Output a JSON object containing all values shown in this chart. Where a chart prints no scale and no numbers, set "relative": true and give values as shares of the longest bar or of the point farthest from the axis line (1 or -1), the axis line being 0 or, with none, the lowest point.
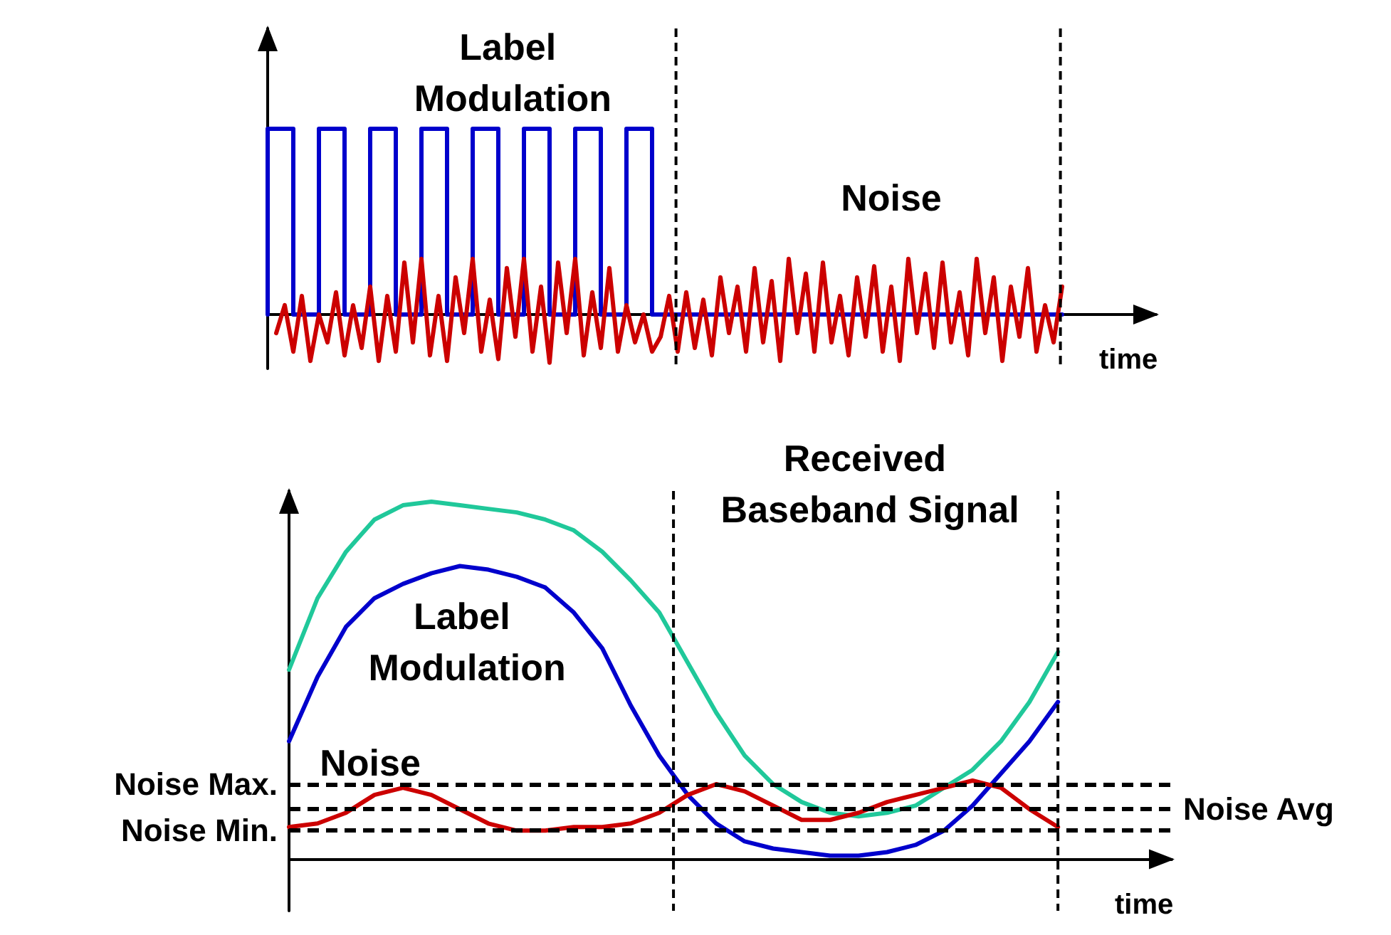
{
  "chart_data": [
    {
      "type": "line",
      "xlabel": "time",
      "relative": true,
      "legend": false,
      "grid": false,
      "marker": "none",
      "line_style": "solid",
      "categories": [
        null,
        null,
        null,
        null,
        null,
        null,
        null,
        null,
        null,
        null,
        null,
        null,
        null,
        null,
        null,
        null,
        null,
        null,
        null,
        null,
        null,
        null,
        null,
        null,
        null,
        null,
        null,
        null,
        null,
        null,
        null,
        null,
        null,
        null,
        null,
        null,
        null,
        null,
        null,
        null,
        null,
        null,
        null,
        null,
        null,
        null,
        null,
        null,
        null,
        null,
        null,
        null,
        null,
        null,
        null,
        null,
        null,
        null,
        null,
        null,
        null,
        null,
        null,
        null,
        null,
        null,
        null,
        null,
        null,
        null,
        null,
        null,
        null,
        null,
        null,
        null,
        null,
        null,
        null,
        null,
        null,
        null,
        null,
        null,
        null,
        null,
        null,
        null,
        null,
        null,
        null,
        null,
        null,
        null,
        null,
        null,
        null,
        null,
        null,
        null,
        null
      ],
      "series": [
        {
          "name": "Label Modulation",
          "type": "step",
          "color": "#0000cc",
          "values": [
            0,
            1,
            1,
            1,
            0,
            0,
            0,
            1,
            1,
            1,
            0,
            0,
            0,
            1,
            1,
            1,
            0,
            0,
            0,
            1,
            1,
            1,
            0,
            0,
            0,
            1,
            1,
            1,
            0,
            0,
            0,
            1,
            1,
            1,
            0,
            0,
            0,
            1,
            1,
            1,
            0,
            0,
            0,
            1,
            1,
            1,
            0,
            0,
            0,
            0,
            0,
            0,
            0,
            0,
            0,
            0,
            0,
            0,
            0,
            0,
            0,
            0,
            0,
            0,
            0,
            0,
            0,
            0,
            0,
            0,
            0,
            0,
            0,
            0,
            0,
            0,
            0,
            0,
            0,
            0,
            0,
            0,
            0,
            0,
            0,
            0,
            0,
            0,
            0,
            0,
            0,
            0,
            0,
            0,
            null,
            null,
            null,
            null,
            null,
            null,
            null
          ]
        },
        {
          "name": "Noise",
          "type": "line",
          "color": "#cc0000",
          "values": [
            null,
            -0.1,
            0.05,
            -0.2,
            0.1,
            -0.25,
            0.0,
            -0.15,
            0.12,
            -0.22,
            0.05,
            -0.18,
            0.15,
            -0.25,
            0.1,
            -0.2,
            0.28,
            -0.15,
            0.3,
            -0.22,
            0.1,
            -0.25,
            0.2,
            -0.1,
            0.3,
            -0.2,
            0.08,
            -0.24,
            0.25,
            -0.12,
            0.3,
            -0.2,
            0.15,
            -0.26,
            0.28,
            -0.1,
            0.3,
            -0.22,
            0.12,
            -0.18,
            0.25,
            -0.2,
            0.05,
            -0.15,
            0.0,
            -0.2,
            -0.12,
            0.1,
            -0.2,
            0.12,
            -0.18,
            0.08,
            -0.22,
            0.2,
            -0.1,
            0.15,
            -0.2,
            0.25,
            -0.15,
            0.18,
            -0.25,
            0.3,
            -0.1,
            0.22,
            -0.2,
            0.28,
            -0.15,
            0.1,
            -0.22,
            0.2,
            -0.12,
            0.26,
            -0.2,
            0.15,
            -0.25,
            0.3,
            -0.1,
            0.22,
            -0.18,
            0.28,
            -0.15,
            0.12,
            -0.22,
            0.3,
            -0.1,
            0.2,
            -0.25,
            0.15,
            -0.12,
            0.25,
            -0.2,
            0.05,
            -0.15,
            0.15,
            null,
            null,
            null,
            null,
            null,
            null,
            null
          ]
        }
      ]
    },
    {
      "type": "line",
      "xlabel": "time",
      "relative": true,
      "legend": false,
      "grid": false,
      "marker": "none",
      "line_style": "solid",
      "categories": [
        null,
        null,
        null,
        null,
        null,
        null,
        null,
        null,
        null,
        null,
        null,
        null,
        null,
        null,
        null,
        null,
        null,
        null,
        null,
        null,
        null,
        null,
        null,
        null,
        null,
        null,
        null,
        null
      ],
      "series": [
        {
          "name": "Received Baseband Signal",
          "color": "#20c89a",
          "values": [
            0.53,
            0.73,
            0.86,
            0.95,
            0.99,
            1.0,
            0.99,
            0.98,
            0.97,
            0.95,
            0.92,
            0.86,
            0.78,
            0.69,
            0.55,
            0.41,
            0.29,
            0.21,
            0.16,
            0.13,
            0.12,
            0.13,
            0.15,
            0.2,
            0.25,
            0.33,
            0.44,
            0.58
          ]
        },
        {
          "name": "Label Modulation",
          "color": "#0000cc",
          "values": [
            0.33,
            0.51,
            0.65,
            0.73,
            0.77,
            0.8,
            0.82,
            0.81,
            0.79,
            0.76,
            0.69,
            0.59,
            0.43,
            0.29,
            0.18,
            0.1,
            0.05,
            0.03,
            0.02,
            0.01,
            0.01,
            0.02,
            0.04,
            0.08,
            0.15,
            0.24,
            0.33,
            0.44
          ]
        },
        {
          "name": "Noise",
          "color": "#cc0000",
          "values": [
            0.09,
            0.1,
            0.13,
            0.18,
            0.2,
            0.18,
            0.14,
            0.1,
            0.08,
            0.08,
            0.09,
            0.09,
            0.1,
            0.13,
            0.18,
            0.21,
            0.19,
            0.15,
            0.11,
            0.11,
            0.13,
            0.16,
            0.18,
            0.2,
            0.22,
            0.2,
            0.14,
            0.09
          ]
        }
      ],
      "ref_lines": [
        {
          "axis": "y",
          "value": 0.21,
          "label": "Noise Max.",
          "color": "#000000",
          "line_style": "dashed"
        },
        {
          "axis": "y",
          "value": 0.08,
          "label": "Noise Min.",
          "color": "#000000",
          "line_style": "dashed"
        },
        {
          "axis": "y",
          "value": 0.14,
          "label": "Noise Avg",
          "color": "#000000",
          "line_style": "dashed"
        }
      ]
    }
  ]
}
